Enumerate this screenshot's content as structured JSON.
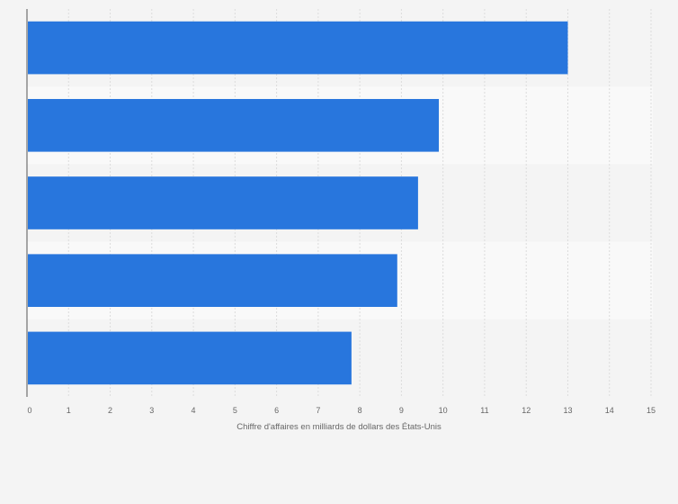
{
  "chart_data": {
    "type": "bar",
    "orientation": "horizontal",
    "categories": [
      "",
      "",
      "",
      "",
      ""
    ],
    "values": [
      13.0,
      9.9,
      9.4,
      8.9,
      7.8
    ],
    "xlabel": "Chiffre d'affaires en milliards de dollars des États-Unis",
    "ylabel": "",
    "xlim": [
      0,
      15
    ],
    "xticks": [
      "0",
      "1",
      "2",
      "3",
      "4",
      "5",
      "6",
      "7",
      "8",
      "9",
      "10",
      "11",
      "12",
      "13",
      "14",
      "15"
    ],
    "grid": true,
    "colors": {
      "bar": "#2876dd",
      "background": "#f4f4f4",
      "band_alt": "#f9f9f9",
      "grid": "#dcdcdc",
      "axis": "#555555"
    }
  }
}
